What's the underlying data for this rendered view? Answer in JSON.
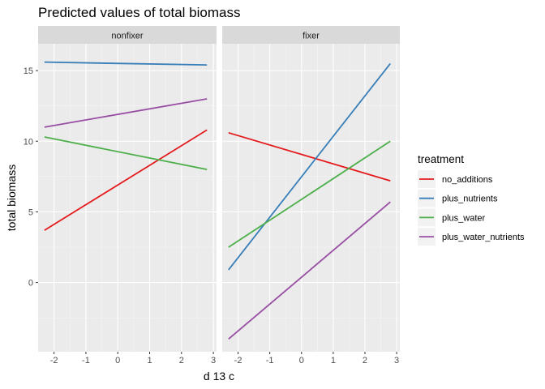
{
  "chart_data": {
    "type": "line",
    "title": "Predicted values of total biomass",
    "xlabel": "d 13 c",
    "ylabel": "total biomass",
    "xlim": [
      -2.5,
      3.1
    ],
    "ylim": [
      -4.9,
      16.9
    ],
    "x_ticks": [
      -2,
      -1,
      0,
      1,
      2,
      3
    ],
    "x_tick_labels": [
      "-2",
      "-1",
      "0",
      "1",
      "2",
      "3"
    ],
    "y_ticks": [
      0,
      5,
      10,
      15
    ],
    "y_tick_labels": [
      "0",
      "5",
      "10",
      "15"
    ],
    "grid": true,
    "legend": {
      "title": "treatment",
      "position": "right",
      "entries": [
        {
          "label": "no_additions",
          "color": "#E41A1C"
        },
        {
          "label": "plus_nutrients",
          "color": "#377EB8"
        },
        {
          "label": "plus_water",
          "color": "#4DAF4A"
        },
        {
          "label": "plus_water_nutrients",
          "color": "#984EA3"
        }
      ]
    },
    "panels": [
      {
        "label": "nonfixer",
        "series": [
          {
            "name": "no_additions",
            "color": "#E41A1C",
            "x": [
              -2.3,
              2.8
            ],
            "y": [
              3.7,
              10.8
            ]
          },
          {
            "name": "plus_nutrients",
            "color": "#377EB8",
            "x": [
              -2.3,
              2.8
            ],
            "y": [
              15.6,
              15.4
            ]
          },
          {
            "name": "plus_water",
            "color": "#4DAF4A",
            "x": [
              -2.3,
              2.8
            ],
            "y": [
              10.3,
              8.0
            ]
          },
          {
            "name": "plus_water_nutrients",
            "color": "#984EA3",
            "x": [
              -2.3,
              2.8
            ],
            "y": [
              11.0,
              13.0
            ]
          }
        ]
      },
      {
        "label": "fixer",
        "series": [
          {
            "name": "no_additions",
            "color": "#E41A1C",
            "x": [
              -2.3,
              2.8
            ],
            "y": [
              10.6,
              7.2
            ]
          },
          {
            "name": "plus_nutrients",
            "color": "#377EB8",
            "x": [
              -2.3,
              2.8
            ],
            "y": [
              0.9,
              15.5
            ]
          },
          {
            "name": "plus_water",
            "color": "#4DAF4A",
            "x": [
              -2.3,
              2.8
            ],
            "y": [
              2.5,
              10.0
            ]
          },
          {
            "name": "plus_water_nutrients",
            "color": "#984EA3",
            "x": [
              -2.3,
              2.8
            ],
            "y": [
              -4.0,
              5.7
            ]
          }
        ]
      }
    ]
  }
}
